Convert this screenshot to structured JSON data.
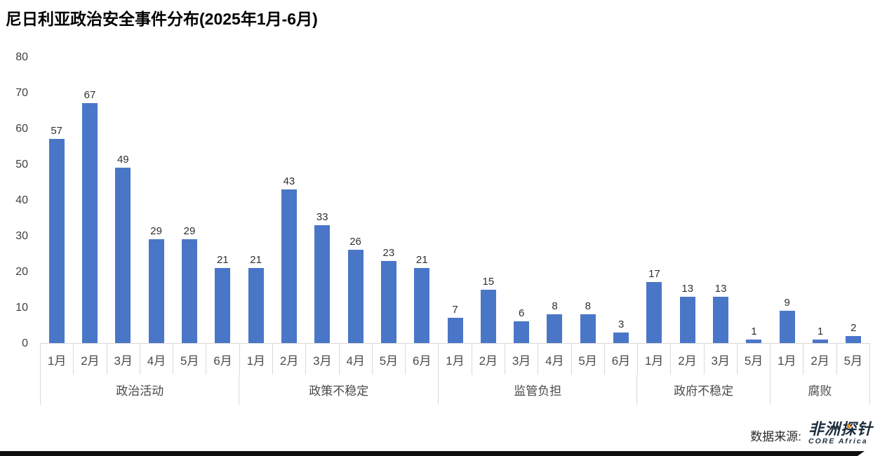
{
  "title": "尼日利亚政治安全事件分布(2025年1月-6月)",
  "source": {
    "label": "数据来源:",
    "logo_cn": "非洲探针",
    "logo_en": "CORE Africa"
  },
  "colors": {
    "bar": "#4a76c8",
    "axis_line": "#d9d9d9",
    "value_label": "#303030",
    "axis_label": "#4a4a4a",
    "logo_navy": "#1d2e3f",
    "logo_orange": "#f28c13",
    "bottom_bar": "#0f0f0f"
  },
  "chart_data": {
    "type": "bar",
    "title": "尼日利亚政治安全事件分布(2025年1月-6月)",
    "xlabel": "",
    "ylabel": "",
    "ylim": [
      0,
      80
    ],
    "y_ticks": [
      80,
      70,
      60,
      50,
      40,
      30,
      20,
      10,
      0
    ],
    "grid": false,
    "legend": false,
    "data_labels": true,
    "groups": [
      {
        "label": "政治活动",
        "categories": [
          "1月",
          "2月",
          "3月",
          "4月",
          "5月",
          "6月"
        ],
        "values": [
          57,
          67,
          49,
          29,
          29,
          21
        ]
      },
      {
        "label": "政策不稳定",
        "categories": [
          "1月",
          "2月",
          "3月",
          "4月",
          "5月",
          "6月"
        ],
        "values": [
          21,
          43,
          33,
          26,
          23,
          21
        ]
      },
      {
        "label": "监管负担",
        "categories": [
          "1月",
          "2月",
          "3月",
          "4月",
          "5月",
          "6月"
        ],
        "values": [
          7,
          15,
          6,
          8,
          8,
          3
        ]
      },
      {
        "label": "政府不稳定",
        "categories": [
          "1月",
          "2月",
          "3月",
          "5月"
        ],
        "values": [
          17,
          13,
          13,
          1
        ]
      },
      {
        "label": "腐败",
        "categories": [
          "1月",
          "2月",
          "5月"
        ],
        "values": [
          9,
          1,
          2
        ]
      }
    ]
  }
}
